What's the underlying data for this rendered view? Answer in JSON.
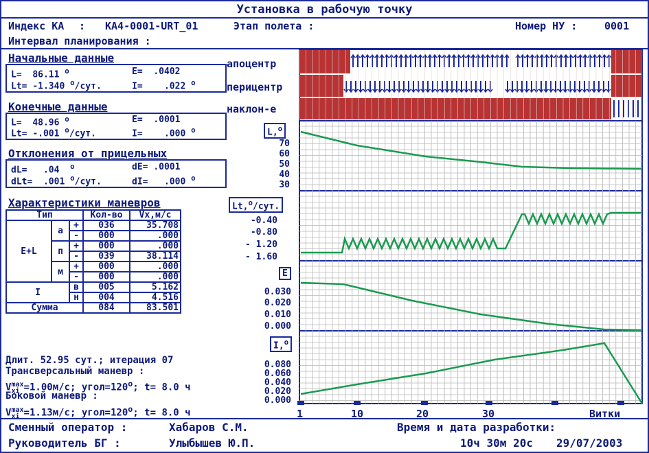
{
  "title": "Установка в рабочую точку",
  "header": {
    "index_label": "Индекс КА",
    "index_value": "КА4-0001-URT_01",
    "stage_label": "Этап полета :",
    "nu_label": "Номер НУ :",
    "nu_value": "0001",
    "interval_label": "Интервал планирования :"
  },
  "initial": {
    "title": "Начальные данные",
    "L": "86.11",
    "E": ".0402",
    "Lt": "-1.340",
    "I": ".022"
  },
  "final": {
    "title": "Конечные данные",
    "L": "48.96",
    "E": ".0001",
    "Lt": "-.001",
    "I": ".000"
  },
  "dev": {
    "title": "Отклонения от прицельных",
    "dL": ".04",
    "dE": ".0001",
    "dLt": ".001",
    "dI": ".000"
  },
  "units": {
    "deg": "о",
    "persut": "/сут."
  },
  "maneuvers": {
    "title": "Характеристики маневров",
    "headers": [
      "Тип",
      "Кол-во",
      "Vx,м/с"
    ],
    "group_el": "E+L",
    "sub": {
      "a": "а",
      "p": "п",
      "m": "м",
      "i": "I",
      "v": "в",
      "n": "н"
    },
    "signs": {
      "plus": "+",
      "minus": "-"
    },
    "rows": [
      {
        "count": "036",
        "vx": "35.708"
      },
      {
        "count": "000",
        "vx": ".000"
      },
      {
        "count": "000",
        "vx": ".000"
      },
      {
        "count": "039",
        "vx": "38.114"
      },
      {
        "count": "000",
        "vx": ".000"
      },
      {
        "count": "000",
        "vx": ".000"
      },
      {
        "count": "005",
        "vx": "5.162"
      },
      {
        "count": "004",
        "vx": "4.516"
      }
    ],
    "sum_label": "Сумма",
    "sum_count": "084",
    "sum_vx": "83.501"
  },
  "info": {
    "line1": "Длит. 52.95 сут.; итерация 07",
    "line2": "Трансверсальный маневр :",
    "line3": "=1.00м/с; угол=120",
    "line3b": "; t= 8.0 ч",
    "line4": "Боковой маневр :",
    "line5": "=1.13м/с; угол=120",
    "line5b": "; t= 8.0 ч",
    "v": "V",
    "sub": "xi",
    "sup": "max"
  },
  "bars": {
    "apo": "апоцентр",
    "peri": "перицентр",
    "incl": "наклон-е"
  },
  "charts": {
    "L": {
      "label": "L,",
      "ticks": [
        "70",
        "60",
        "50",
        "40",
        "30"
      ]
    },
    "Lt": {
      "label": "Lt,",
      "label2": "/сут.",
      "ticks": [
        "-0.40",
        "-0.80",
        "- 1.20",
        "- 1.60"
      ]
    },
    "E": {
      "label": "E",
      "ticks": [
        "0.030",
        "0.020",
        "0.010",
        "0.000"
      ]
    },
    "I": {
      "label": "I,",
      "ticks": [
        "0.080",
        "0.060",
        "0.040",
        "0.020",
        "0.000"
      ]
    }
  },
  "xaxis": {
    "ticks": [
      "1",
      "10",
      "20",
      "30"
    ],
    "label": "Витки"
  },
  "footer": {
    "op_label": "Сменный оператор :",
    "op_name": "Хабаров С.М.",
    "head_label": "Руководитель БГ :",
    "head_name": "Улыбышев Ю.П.",
    "time_label": "Время и дата разработки:",
    "time_value": "10ч 30м 20с",
    "date_value": "29/07/2003"
  },
  "colors": {
    "frame": "#1a2a9a",
    "bar": "#b83333",
    "line": "#1a9a50",
    "grid": "#b8b8b8"
  }
}
